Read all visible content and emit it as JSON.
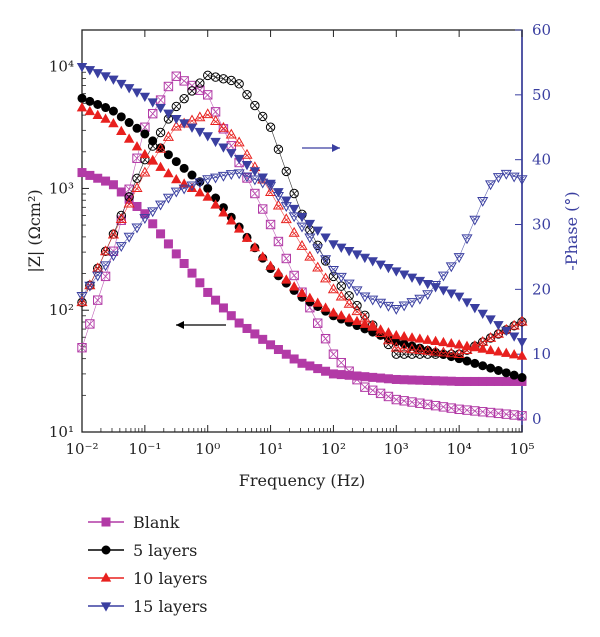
{
  "chart_data": {
    "type": "scatter",
    "title": "",
    "xlabel": "Frequency (Hz)",
    "ylabel_left": "|Z| (Ωcm²)",
    "ylabel_right": "-Phase (°)",
    "x_scale": "log",
    "y_left_scale": "log",
    "xlim": [
      0.01,
      100000
    ],
    "ylim_left": [
      10,
      20000
    ],
    "ylim_right": [
      -2,
      60
    ],
    "x_ticks": [
      "10⁻²",
      "10⁻¹",
      "10⁰",
      "10¹",
      "10²",
      "10³",
      "10⁴",
      "10⁵"
    ],
    "y_left_ticks": [
      "10¹",
      "10²",
      "10³",
      "10⁴"
    ],
    "y_right_ticks": [
      "0",
      "10",
      "20",
      "30",
      "40",
      "50",
      "60"
    ],
    "grid": false,
    "legend_position": "below",
    "series": [
      {
        "name": "Blank",
        "color": "#b23aa6",
        "marker": "square",
        "impedance": {
          "x": [
            0.01,
            0.03,
            0.1,
            0.3,
            1,
            3,
            10,
            30,
            100,
            1000,
            10000,
            100000
          ],
          "y": [
            1350,
            1100,
            620,
            300,
            140,
            80,
            52,
            37,
            30,
            27,
            26,
            26
          ]
        },
        "phase": {
          "x": [
            0.01,
            0.03,
            0.1,
            0.3,
            1,
            3,
            10,
            30,
            100,
            300,
            1000,
            10000,
            100000
          ],
          "y": [
            11,
            25,
            45,
            53,
            50,
            40,
            30,
            20,
            10,
            5,
            3,
            1.5,
            0.5
          ]
        }
      },
      {
        "name": "5 layers",
        "color": "#000000",
        "marker": "circle",
        "impedance": {
          "x": [
            0.01,
            0.03,
            0.1,
            0.3,
            1,
            3,
            10,
            30,
            100,
            1000,
            10000,
            100000
          ],
          "y": [
            5500,
            4400,
            2800,
            1700,
            1000,
            500,
            220,
            130,
            90,
            55,
            40,
            28
          ]
        },
        "phase": {
          "x": [
            0.01,
            0.03,
            0.1,
            0.3,
            1,
            3,
            10,
            30,
            100,
            1000,
            10000,
            100000
          ],
          "y": [
            18,
            28,
            40,
            48,
            53,
            52,
            45,
            32,
            22,
            10,
            10,
            15
          ]
        }
      },
      {
        "name": "10 layers",
        "color": "#e8201e",
        "marker": "triangle-up",
        "impedance": {
          "x": [
            0.01,
            0.03,
            0.1,
            0.3,
            1,
            3,
            10,
            30,
            100,
            1000,
            10000,
            100000
          ],
          "y": [
            4600,
            3500,
            1900,
            1200,
            850,
            480,
            230,
            140,
            95,
            62,
            52,
            42
          ]
        },
        "phase": {
          "x": [
            0.01,
            0.03,
            0.1,
            0.3,
            1,
            3,
            10,
            30,
            100,
            1000,
            10000,
            100000
          ],
          "y": [
            18,
            28,
            38,
            45,
            47,
            43,
            35,
            27,
            20,
            11,
            10,
            15
          ]
        }
      },
      {
        "name": "15 layers",
        "color": "#3a3fa0",
        "marker": "triangle-down",
        "impedance": {
          "x": [
            0.01,
            0.03,
            0.1,
            0.3,
            1,
            3,
            10,
            30,
            100,
            1000,
            10000,
            100000
          ],
          "y": [
            10000,
            8000,
            5700,
            3800,
            2700,
            1800,
            1100,
            600,
            350,
            210,
            130,
            55
          ]
        },
        "phase": {
          "x": [
            0.01,
            0.03,
            0.1,
            0.3,
            1,
            3,
            10,
            30,
            100,
            300,
            1000,
            3000,
            10000,
            30000,
            50000,
            100000
          ],
          "y": [
            19,
            25,
            31,
            35,
            37,
            38,
            36,
            30,
            23,
            19,
            17,
            19,
            25,
            36,
            38,
            37
          ]
        }
      }
    ],
    "annotations": [
      {
        "text": "arrow pointing left to |Z| axis",
        "target": "left-axis",
        "color": "#000000"
      },
      {
        "text": "arrow pointing right to phase axis",
        "target": "right-axis",
        "color": "#3a3fa0"
      }
    ]
  }
}
